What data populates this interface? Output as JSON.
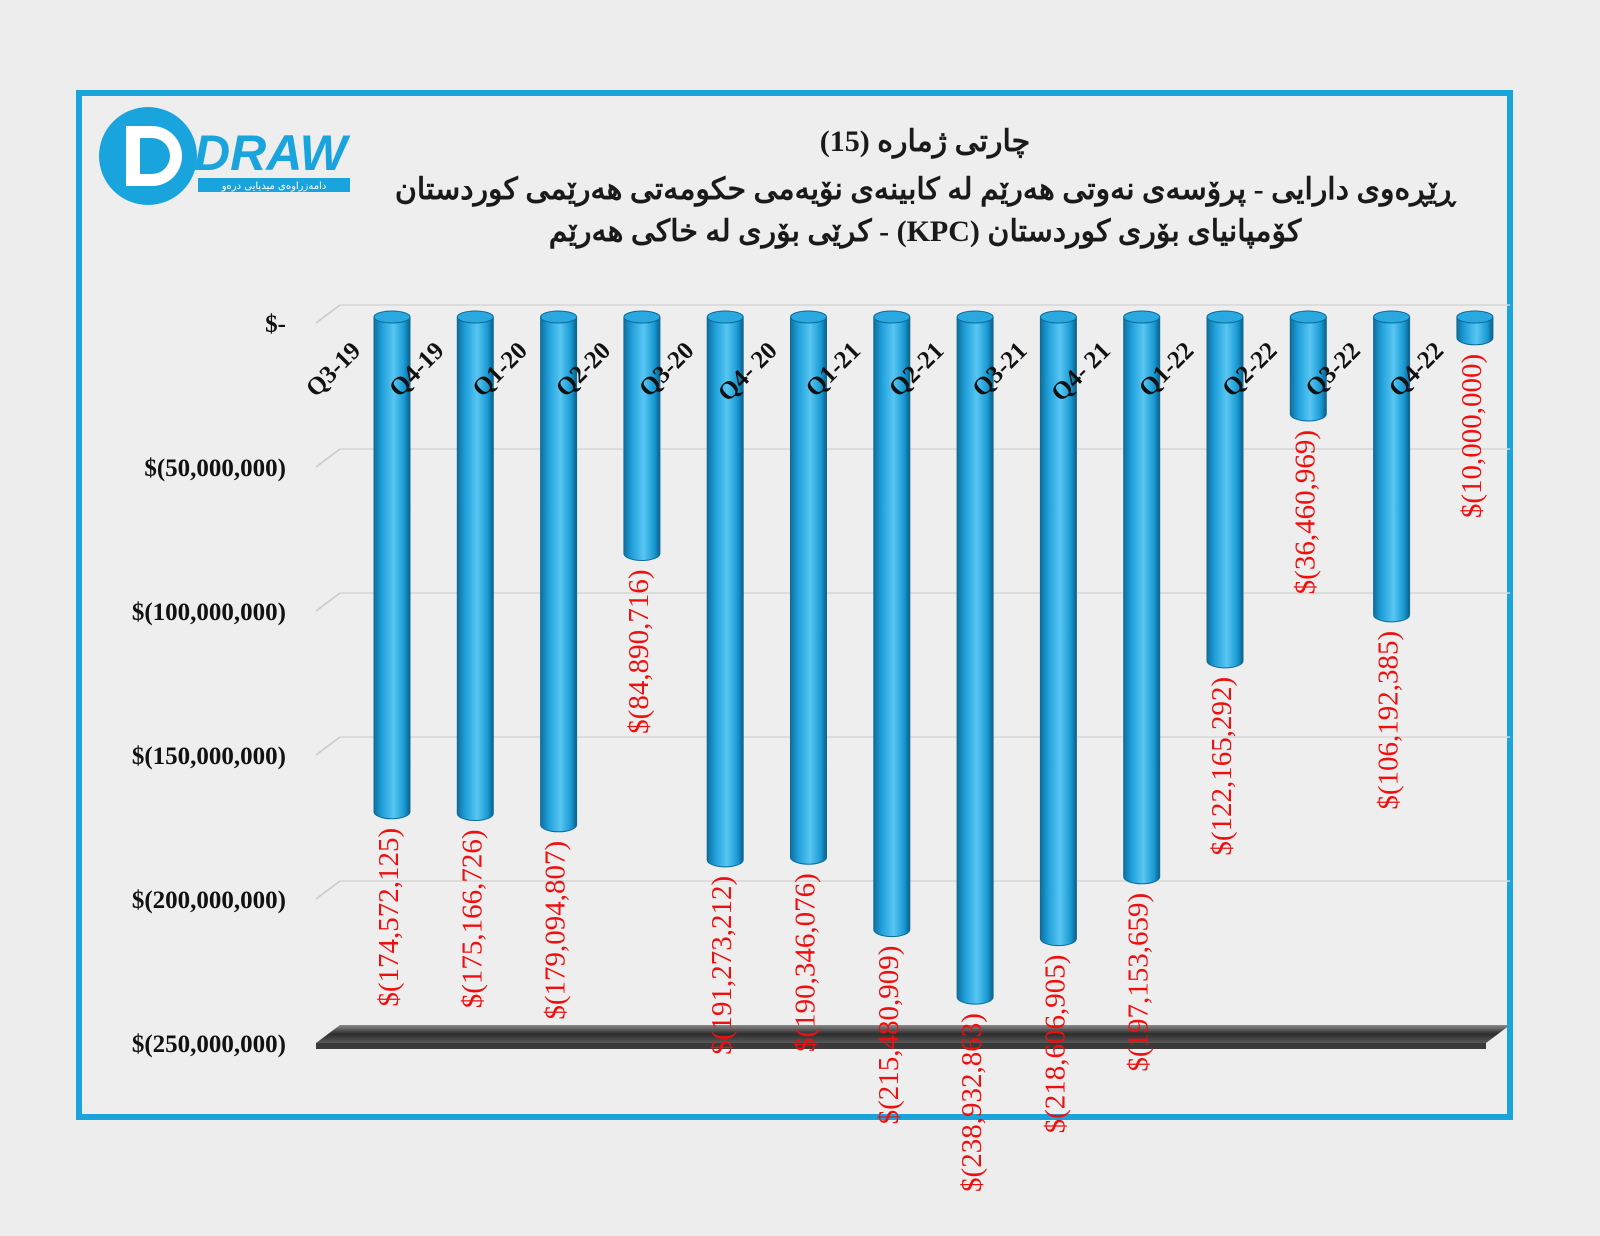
{
  "logo": {
    "wordmark": "DRAW",
    "tagline": "دامەزراوەی میدیایی درەو"
  },
  "titles": {
    "line1": "چارتی ژمارە (15)",
    "line2": "ڕێڕەوی دارایی - پرۆسەی نەوتی هەرێم لە کابینەی نۆیەمی حکومەتی هەرێمی کوردستان",
    "line3": "کۆمپانیای بۆری کوردستان (KPC) - کرێی بۆری لە خاکی هەرێم"
  },
  "colors": {
    "frame": "#1aa4de",
    "bar": "#1aa4de",
    "label": "#ee0f0f"
  },
  "chart_data": {
    "type": "bar",
    "orientation": "vertical",
    "categories": [
      "Q3-19",
      "Q4-19",
      "Q1-20",
      "Q2-20",
      "Q3-20",
      "Q4- 20",
      "Q1-21",
      "Q2-21",
      "Q3-21",
      "Q4- 21",
      "Q1-22",
      "Q2-22",
      "Q3-22",
      "Q4-22"
    ],
    "values": [
      -174572125,
      -175166726,
      -179094807,
      -84890716,
      -191273212,
      -190346076,
      -215480909,
      -238932863,
      -218606905,
      -197153659,
      -122165292,
      -36460969,
      -106192385,
      -10000000
    ],
    "data_labels": [
      "$(174,572,125)",
      "$(175,166,726)",
      "$(179,094,807)",
      "$(84,890,716)",
      "$(191,273,212)",
      "$(190,346,076)",
      "$(215,480,909)",
      "$(238,932,863)",
      "$(218,606,905)",
      "$(197,153,659)",
      "$(122,165,292)",
      "$(36,460,969)",
      "$(106,192,385)",
      "$(10,000,000)"
    ],
    "y_ticks": [
      {
        "value": 0,
        "label": "$-"
      },
      {
        "value": -50000000,
        "label": "$(50,000,000)"
      },
      {
        "value": -100000000,
        "label": "$(100,000,000)"
      },
      {
        "value": -150000000,
        "label": "$(150,000,000)"
      },
      {
        "value": -200000000,
        "label": "$(200,000,000)"
      },
      {
        "value": -250000000,
        "label": "$(250,000,000)"
      }
    ],
    "ylim": [
      -250000000,
      0
    ],
    "grid": true,
    "legend": "none",
    "style": "3d-cylinder"
  }
}
